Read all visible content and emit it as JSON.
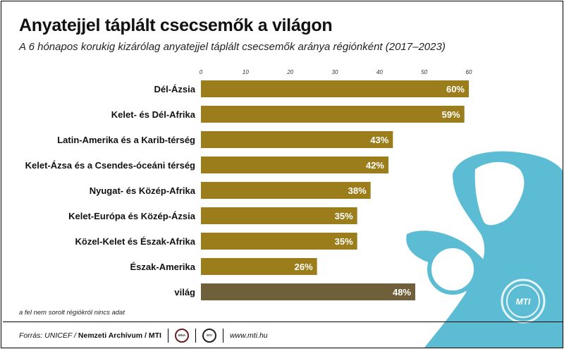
{
  "chart_data": {
    "type": "bar",
    "orientation": "horizontal",
    "title": "Anyatejjel táplált csecsemők a világon",
    "subtitle": "A 6 hónapos korukig kizárólag anyatejjel táplált csecsemők aránya régiónként (2017–2023)",
    "categories": [
      "Dél-Ázsia",
      "Kelet- és Dél-Afrika",
      "Latin-Amerika és a Karib-térség",
      "Kelet-Ázsa és a Csendes-óceáni térség",
      "Nyugat- és Közép-Afrika",
      "Kelet-Európa és Közép-Ázsia",
      "Közel-Kelet és Észak-Afrika",
      "Észak-Amerika",
      "világ"
    ],
    "values": [
      60,
      59,
      43,
      42,
      38,
      35,
      35,
      26,
      48
    ],
    "data_labels": [
      "60%",
      "59%",
      "43%",
      "42%",
      "38%",
      "35%",
      "35%",
      "26%",
      "48%"
    ],
    "xticks": [
      0,
      10,
      20,
      30,
      40,
      50,
      60
    ],
    "xlim": [
      0,
      60
    ],
    "xaxis_position": "top",
    "grid": false,
    "bar_color": "#9b7d1c",
    "world_bar_color": "#6f5f3a"
  },
  "note": "a fel nem sorolt régiókról nincs adat",
  "footer": {
    "source": "Forrás: UNICEF /",
    "source_bold": "Nemzeti Archívum / MTI",
    "logo1": "MNA",
    "logo2": "MTI",
    "url": "www.mti.hu"
  },
  "illustration": {
    "icon": "mother-with-baby-icon",
    "color": "#5bbcd4",
    "badge": "MTI"
  }
}
